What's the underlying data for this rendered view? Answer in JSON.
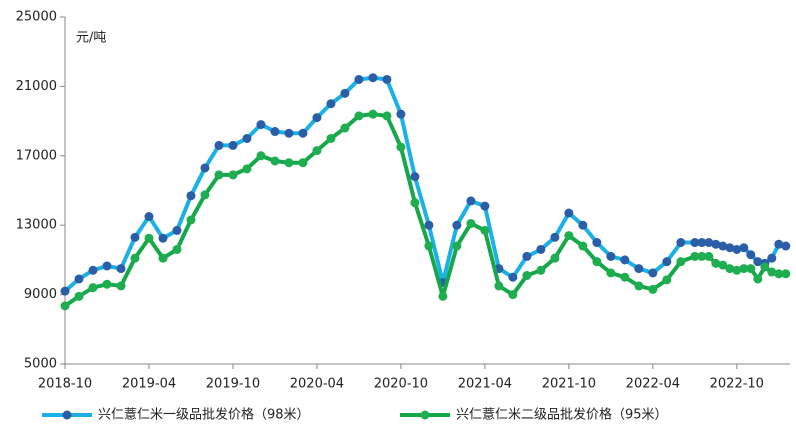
{
  "chart_data": {
    "type": "line",
    "unit_label": "元/吨",
    "x": [
      0,
      1,
      2,
      3,
      4,
      5,
      6,
      7,
      8,
      9,
      10,
      11,
      12,
      13,
      14,
      15,
      16,
      17,
      18,
      19,
      20,
      21,
      22,
      23,
      24,
      25,
      26,
      27,
      28,
      29,
      30,
      31,
      32,
      33,
      34,
      35,
      36,
      37,
      38,
      39,
      40,
      41,
      42,
      43,
      44,
      45,
      45.5,
      46,
      46.5,
      47,
      47.5,
      48,
      48.5,
      49,
      49.5,
      50,
      50.5,
      51,
      51.5
    ],
    "xlim": [
      0,
      51.8
    ],
    "xticks": [
      {
        "value": 0,
        "label": "2018-10"
      },
      {
        "value": 6,
        "label": "2019-04"
      },
      {
        "value": 12,
        "label": "2019-10"
      },
      {
        "value": 18,
        "label": "2020-04"
      },
      {
        "value": 24,
        "label": "2020-10"
      },
      {
        "value": 30,
        "label": "2021-04"
      },
      {
        "value": 36,
        "label": "2021-10"
      },
      {
        "value": 42,
        "label": "2022-04"
      },
      {
        "value": 48,
        "label": "2022-10"
      }
    ],
    "ylim": [
      5000,
      25000
    ],
    "yticks": [
      5000,
      9000,
      13000,
      17000,
      21000,
      25000
    ],
    "grid": false,
    "legend": "bottom",
    "series": [
      {
        "name": "兴仁薏仁米一级品批发价格（98米）",
        "color": "#1ab0e8",
        "marker_color": "#2a5fa8",
        "values": [
          9200,
          9900,
          10400,
          10650,
          10500,
          12300,
          13500,
          12250,
          12700,
          14700,
          16300,
          17600,
          17600,
          18000,
          18800,
          18400,
          18300,
          18300,
          19200,
          20000,
          20600,
          21400,
          21500,
          21400,
          19400,
          15800,
          13000,
          9700,
          13000,
          14400,
          14100,
          10500,
          10000,
          11200,
          11600,
          12300,
          13700,
          13000,
          12000,
          11200,
          11000,
          10500,
          10250,
          10900,
          12000,
          12000,
          12000,
          12000,
          11900,
          11800,
          11700,
          11600,
          11700,
          11300,
          10900,
          10800,
          11100,
          11900,
          11800
        ]
      },
      {
        "name": "兴仁薏仁米二级品批发价格（95米）",
        "color": "#14a84a",
        "marker_color": "#1fae4f",
        "values": [
          8350,
          8900,
          9400,
          9600,
          9500,
          11100,
          12250,
          11100,
          11600,
          13300,
          14750,
          15900,
          15900,
          16250,
          17000,
          16700,
          16600,
          16600,
          17300,
          18000,
          18600,
          19300,
          19400,
          19300,
          17500,
          14300,
          11800,
          8900,
          11800,
          13100,
          12700,
          9500,
          9000,
          10100,
          10400,
          11100,
          12400,
          11800,
          10900,
          10250,
          10000,
          9500,
          9300,
          9850,
          10900,
          11200,
          11200,
          11200,
          10800,
          10700,
          10500,
          10400,
          10500,
          10500,
          9900,
          10600,
          10300,
          10200,
          10200
        ]
      }
    ]
  }
}
